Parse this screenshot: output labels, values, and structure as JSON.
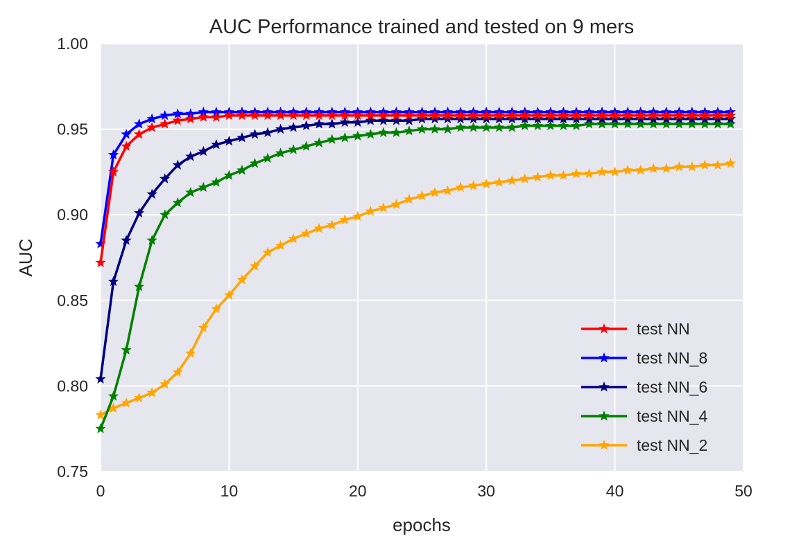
{
  "chart_data": {
    "type": "line",
    "title": "AUC Performance trained and tested on 9 mers",
    "xlabel": "epochs",
    "ylabel": "AUC",
    "xlim": [
      0,
      50
    ],
    "ylim": [
      0.75,
      1.0
    ],
    "xticks": [
      0,
      10,
      20,
      30,
      40,
      50
    ],
    "yticks": [
      0.75,
      0.8,
      0.85,
      0.9,
      0.95,
      1.0
    ],
    "xtick_labels": [
      "0",
      "10",
      "20",
      "30",
      "40",
      "50"
    ],
    "ytick_labels": [
      "0.75",
      "0.80",
      "0.85",
      "0.90",
      "0.95",
      "1.00"
    ],
    "grid": true,
    "background": "#e6e6ee",
    "legend_position": "bottom-right",
    "marker": "star",
    "x": [
      0,
      1,
      2,
      3,
      4,
      5,
      6,
      7,
      8,
      9,
      10,
      11,
      12,
      13,
      14,
      15,
      16,
      17,
      18,
      19,
      20,
      21,
      22,
      23,
      24,
      25,
      26,
      27,
      28,
      29,
      30,
      31,
      32,
      33,
      34,
      35,
      36,
      37,
      38,
      39,
      40,
      41,
      42,
      43,
      44,
      45,
      46,
      47,
      48,
      49
    ],
    "series": [
      {
        "name": "test NN",
        "color": "#ff0000",
        "values": [
          0.872,
          0.925,
          0.94,
          0.947,
          0.951,
          0.953,
          0.955,
          0.956,
          0.957,
          0.957,
          0.958,
          0.958,
          0.958,
          0.958,
          0.958,
          0.958,
          0.958,
          0.958,
          0.958,
          0.958,
          0.958,
          0.958,
          0.958,
          0.958,
          0.958,
          0.958,
          0.958,
          0.958,
          0.958,
          0.958,
          0.958,
          0.958,
          0.958,
          0.958,
          0.958,
          0.958,
          0.958,
          0.958,
          0.958,
          0.958,
          0.958,
          0.958,
          0.958,
          0.958,
          0.958,
          0.958,
          0.958,
          0.958,
          0.958,
          0.958
        ]
      },
      {
        "name": "test NN_8",
        "color": "#0000ff",
        "values": [
          0.883,
          0.935,
          0.947,
          0.953,
          0.956,
          0.958,
          0.959,
          0.959,
          0.96,
          0.96,
          0.96,
          0.96,
          0.96,
          0.96,
          0.96,
          0.96,
          0.96,
          0.96,
          0.96,
          0.96,
          0.96,
          0.96,
          0.96,
          0.96,
          0.96,
          0.96,
          0.96,
          0.96,
          0.96,
          0.96,
          0.96,
          0.96,
          0.96,
          0.96,
          0.96,
          0.96,
          0.96,
          0.96,
          0.96,
          0.96,
          0.96,
          0.96,
          0.96,
          0.96,
          0.96,
          0.96,
          0.96,
          0.96,
          0.96,
          0.96
        ]
      },
      {
        "name": "test NN_6",
        "color": "#000080",
        "values": [
          0.804,
          0.861,
          0.885,
          0.901,
          0.912,
          0.921,
          0.929,
          0.934,
          0.937,
          0.941,
          0.943,
          0.945,
          0.947,
          0.948,
          0.95,
          0.951,
          0.952,
          0.953,
          0.953,
          0.954,
          0.954,
          0.955,
          0.955,
          0.955,
          0.955,
          0.956,
          0.956,
          0.956,
          0.956,
          0.956,
          0.956,
          0.956,
          0.956,
          0.956,
          0.956,
          0.956,
          0.956,
          0.956,
          0.956,
          0.956,
          0.956,
          0.956,
          0.956,
          0.956,
          0.956,
          0.956,
          0.956,
          0.956,
          0.956,
          0.956
        ]
      },
      {
        "name": "test NN_4",
        "color": "#008000",
        "values": [
          0.775,
          0.794,
          0.821,
          0.858,
          0.885,
          0.9,
          0.907,
          0.913,
          0.916,
          0.919,
          0.923,
          0.926,
          0.93,
          0.933,
          0.936,
          0.938,
          0.94,
          0.942,
          0.944,
          0.945,
          0.946,
          0.947,
          0.948,
          0.948,
          0.949,
          0.95,
          0.95,
          0.95,
          0.951,
          0.951,
          0.951,
          0.951,
          0.951,
          0.952,
          0.952,
          0.952,
          0.952,
          0.952,
          0.953,
          0.953,
          0.953,
          0.953,
          0.953,
          0.953,
          0.953,
          0.953,
          0.953,
          0.953,
          0.953,
          0.953
        ]
      },
      {
        "name": "test NN_2",
        "color": "#ffa500",
        "values": [
          0.783,
          0.787,
          0.79,
          0.793,
          0.796,
          0.801,
          0.808,
          0.819,
          0.834,
          0.845,
          0.853,
          0.862,
          0.87,
          0.878,
          0.882,
          0.886,
          0.889,
          0.892,
          0.894,
          0.897,
          0.899,
          0.902,
          0.904,
          0.906,
          0.909,
          0.911,
          0.913,
          0.914,
          0.916,
          0.917,
          0.918,
          0.919,
          0.92,
          0.921,
          0.922,
          0.923,
          0.923,
          0.924,
          0.924,
          0.925,
          0.925,
          0.926,
          0.926,
          0.927,
          0.927,
          0.928,
          0.928,
          0.929,
          0.929,
          0.93
        ]
      }
    ]
  }
}
